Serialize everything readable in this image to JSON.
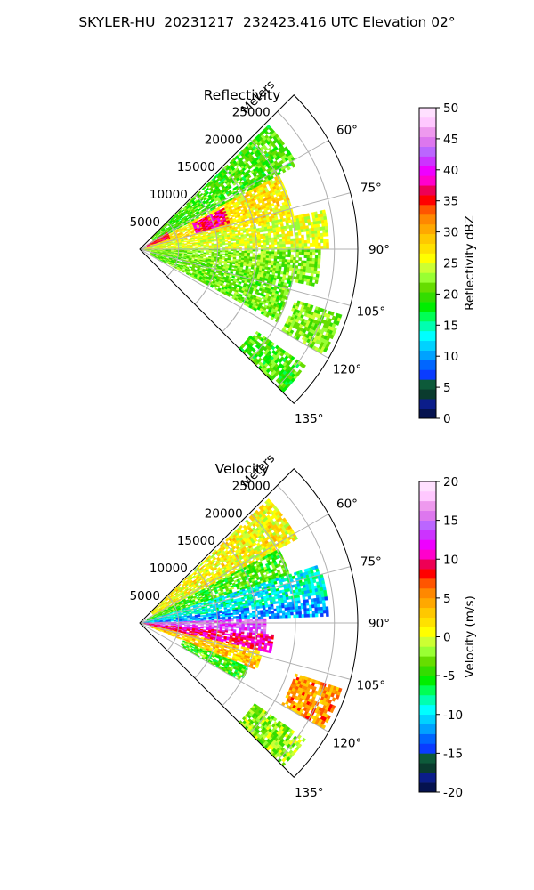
{
  "page": {
    "title": "SKYLER-HU  20231217  232423.416 UTC Elevation 02°"
  },
  "chart_data": [
    {
      "type": "polar-sector",
      "title": "Reflectivity",
      "radial_label": "Meters",
      "radial_ticks": [
        "5000",
        "10000",
        "15000",
        "20000",
        "25000"
      ],
      "angle_ticks": [
        "60°",
        "75°",
        "90°",
        "105°",
        "120°",
        "135°"
      ],
      "angle_range_deg": [
        45,
        135
      ],
      "range_max_m": 28000,
      "grid": true,
      "colorbar": {
        "label": "Reflectivity dBZ",
        "ticks": [
          "0",
          "5",
          "10",
          "15",
          "20",
          "25",
          "30",
          "35",
          "40",
          "45",
          "50"
        ],
        "range": [
          0,
          50
        ]
      },
      "fields": [
        {
          "angles": [
            46,
            62
          ],
          "r_range_m": [
            2000,
            23000
          ],
          "value": 20
        },
        {
          "angles": [
            62,
            78
          ],
          "r_range_m": [
            1000,
            20000
          ],
          "value": 27
        },
        {
          "angles": [
            78,
            90
          ],
          "r_range_m": [
            500,
            24000
          ],
          "value": 25
        },
        {
          "angles": [
            90,
            102
          ],
          "r_range_m": [
            500,
            23000
          ],
          "value": 22
        },
        {
          "angles": [
            102,
            118
          ],
          "r_range_m": [
            1500,
            20000
          ],
          "value": 21
        },
        {
          "angles": [
            108,
            120
          ],
          "r_range_m": [
            21000,
            27000
          ],
          "value": 22
        },
        {
          "angles": [
            125,
            135
          ],
          "r_range_m": [
            18000,
            26000
          ],
          "value": 20
        },
        {
          "angles": [
            58,
            70
          ],
          "r_range_m": [
            1000,
            4000
          ],
          "value": 36
        },
        {
          "angles": [
            64,
            74
          ],
          "r_range_m": [
            7500,
            12000
          ],
          "value": 37
        }
      ]
    },
    {
      "type": "polar-sector",
      "title": "Velocity",
      "radial_label": "Meters",
      "radial_ticks": [
        "5000",
        "10000",
        "15000",
        "20000",
        "25000"
      ],
      "angle_ticks": [
        "60°",
        "75°",
        "90°",
        "105°",
        "120°",
        "135°"
      ],
      "angle_range_deg": [
        45,
        135
      ],
      "range_max_m": 28000,
      "grid": true,
      "colorbar": {
        "label": "Velocity (m/s)",
        "ticks": [
          "-20",
          "-15",
          "-10",
          "-5",
          "0",
          "5",
          "10",
          "15",
          "20"
        ],
        "range": [
          -20,
          20
        ]
      },
      "fields": [
        {
          "angles": [
            46,
            62
          ],
          "r_range_m": [
            2000,
            23000
          ],
          "value": 1
        },
        {
          "angles": [
            62,
            72
          ],
          "r_range_m": [
            1000,
            20000
          ],
          "value": -4
        },
        {
          "angles": [
            72,
            82
          ],
          "r_range_m": [
            500,
            24000
          ],
          "value": -9
        },
        {
          "angles": [
            82,
            88
          ],
          "r_range_m": [
            500,
            24000
          ],
          "value": -12
        },
        {
          "angles": [
            88,
            95
          ],
          "r_range_m": [
            500,
            16000
          ],
          "value": 14
        },
        {
          "angles": [
            95,
            103
          ],
          "r_range_m": [
            500,
            17000
          ],
          "value": 10
        },
        {
          "angles": [
            103,
            112
          ],
          "r_range_m": [
            1500,
            16000
          ],
          "value": 3
        },
        {
          "angles": [
            112,
            120
          ],
          "r_range_m": [
            6000,
            15000
          ],
          "value": -4
        },
        {
          "angles": [
            108,
            120
          ],
          "r_range_m": [
            21000,
            27000
          ],
          "value": 5
        },
        {
          "angles": [
            125,
            135
          ],
          "r_range_m": [
            18000,
            26000
          ],
          "value": -2
        }
      ]
    }
  ]
}
